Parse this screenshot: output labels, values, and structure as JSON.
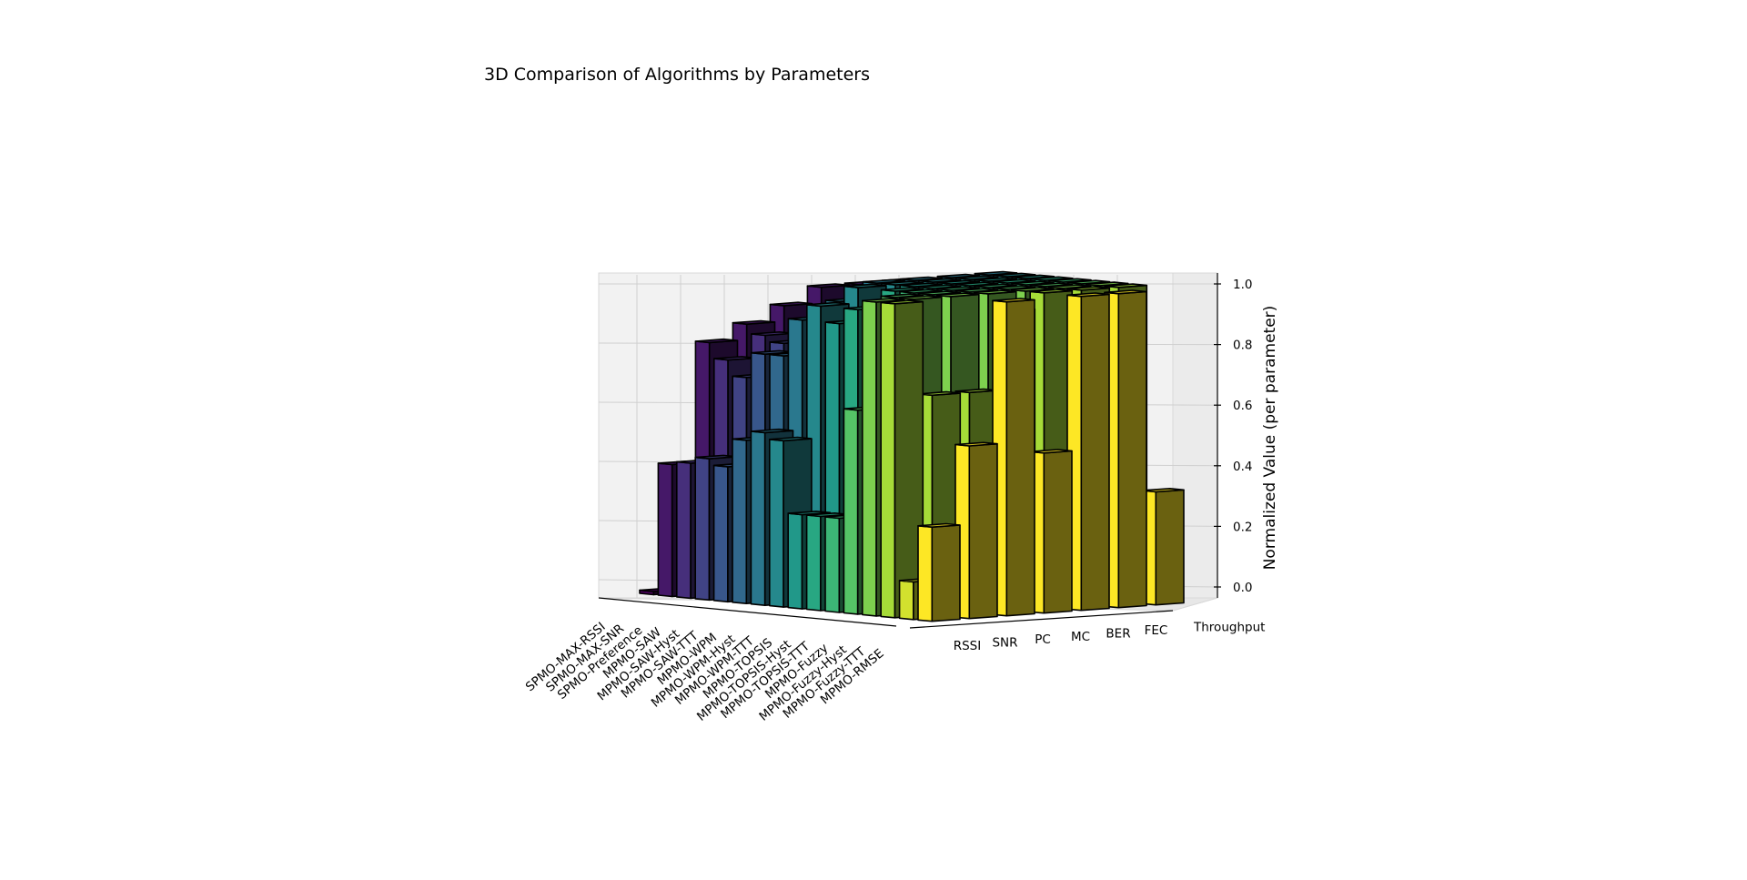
{
  "chart_data": {
    "type": "bar3d",
    "title": "3D Comparison of Algorithms by Parameters",
    "zlabel": "Normalized Value (per parameter)",
    "zlim": [
      0,
      1
    ],
    "zticks": [
      "0.0",
      "0.2",
      "0.4",
      "0.6",
      "0.8",
      "1.0"
    ],
    "colormap": "viridis",
    "algorithms": [
      "SPMO-MAX-RSSI",
      "SPMO-MAX-SNR",
      "SPMO-Preference",
      "MPMO-SAW",
      "MPMO-SAW-Hyst",
      "MPMO-SAW-TTT",
      "MPMO-WPM",
      "MPMO-WPM-Hyst",
      "MPMO-WPM-TTT",
      "MPMO-TOPSIS",
      "MPMO-TOPSIS-Hyst",
      "MPMO-TOPSIS-TTT",
      "MPMO-Fuzzy",
      "MPMO-Fuzzy-Hyst",
      "MPMO-Fuzzy-TTT",
      "MPMO-RMSE"
    ],
    "parameters": [
      "RSSI",
      "SNR",
      "PC",
      "MC",
      "BER",
      "FEC",
      "Throughput"
    ],
    "series": [
      {
        "name": "RSSI",
        "values": [
          0.01,
          0.42,
          0.43,
          0.45,
          0.43,
          0.52,
          0.55,
          0.53,
          0.3,
          0.3,
          0.3,
          0.65,
          1.0,
          1.0,
          0.12,
          0.3
        ]
      },
      {
        "name": "SNR",
        "values": [
          0.4,
          0.8,
          0.75,
          0.7,
          0.78,
          0.78,
          0.9,
          0.95,
          0.9,
          0.95,
          0.95,
          1.0,
          1.0,
          0.7,
          0.06,
          0.55
        ]
      },
      {
        "name": "PC",
        "values": [
          0.45,
          0.85,
          0.82,
          0.8,
          0.85,
          0.88,
          0.95,
          1.0,
          0.95,
          1.0,
          1.0,
          1.0,
          1.0,
          0.7,
          0.04,
          1.0
        ]
      },
      {
        "name": "MC",
        "values": [
          0.5,
          0.9,
          0.85,
          0.82,
          0.9,
          0.9,
          1.0,
          1.0,
          1.0,
          1.0,
          1.0,
          1.0,
          1.0,
          0.95,
          0.04,
          0.51
        ]
      },
      {
        "name": "BER",
        "values": [
          0.5,
          0.95,
          0.9,
          0.85,
          0.9,
          0.92,
          1.0,
          1.0,
          1.0,
          1.0,
          1.0,
          1.0,
          1.0,
          1.0,
          0.01,
          1.0
        ]
      },
      {
        "name": "FEC",
        "values": [
          0.55,
          0.95,
          0.9,
          0.88,
          0.92,
          0.95,
          1.0,
          1.0,
          1.0,
          1.0,
          1.0,
          1.0,
          1.0,
          1.0,
          0.01,
          1.0
        ]
      },
      {
        "name": "Throughput",
        "values": [
          0.55,
          0.95,
          0.92,
          0.9,
          0.95,
          0.95,
          1.0,
          1.0,
          1.0,
          1.0,
          1.0,
          1.0,
          1.0,
          1.0,
          0.35,
          0.36
        ]
      }
    ]
  }
}
